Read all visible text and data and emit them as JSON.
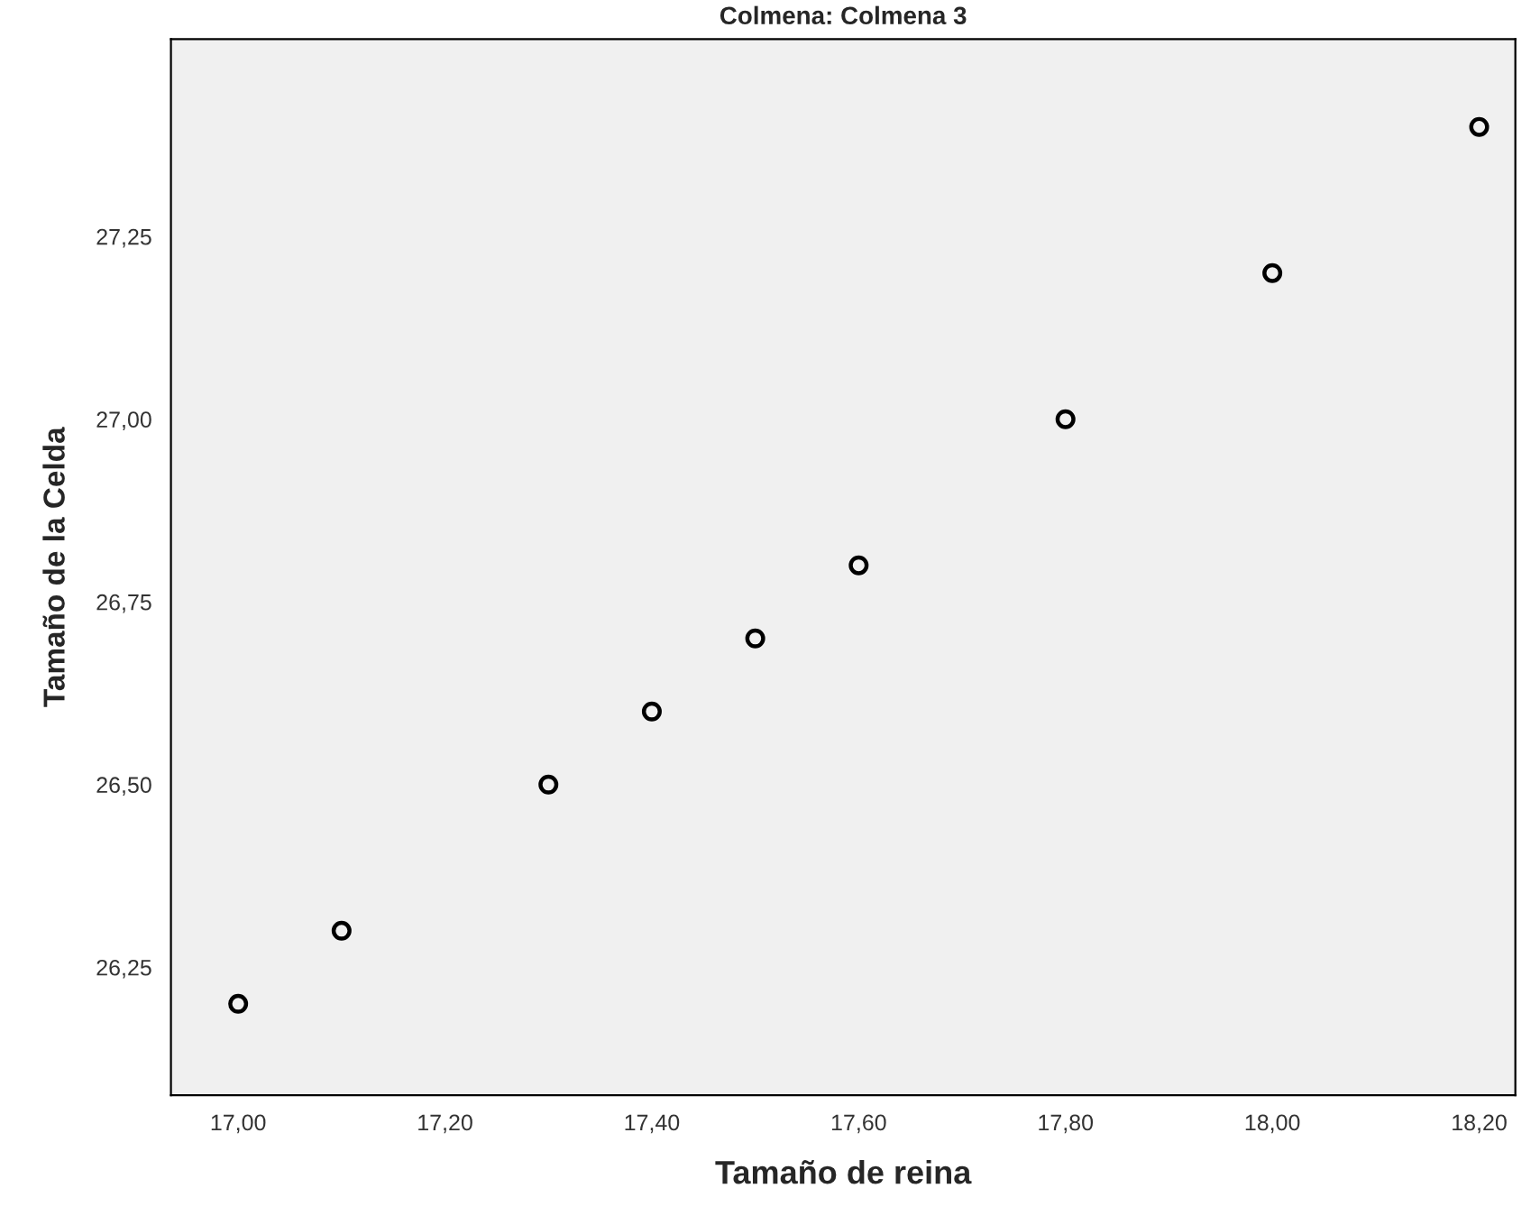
{
  "chart_data": {
    "type": "scatter",
    "title": "Colmena: Colmena 3",
    "xlabel": "Tamaño de reina",
    "ylabel": "Tamaño de la Celda",
    "x": [
      17.0,
      17.1,
      17.3,
      17.4,
      17.5,
      17.6,
      17.8,
      18.0,
      18.2
    ],
    "series": [
      {
        "color": "#000000",
        "values": [
          26.2,
          26.3,
          26.5,
          26.6,
          26.7,
          26.8,
          27.0,
          27.2,
          27.4
        ]
      }
    ],
    "xlim": [
      16.935,
      18.235
    ],
    "ylim": [
      26.075,
      27.52
    ],
    "xticks": [
      {
        "value": 17.0,
        "label": "17,00"
      },
      {
        "value": 17.2,
        "label": "17,20"
      },
      {
        "value": 17.4,
        "label": "17,40"
      },
      {
        "value": 17.6,
        "label": "17,60"
      },
      {
        "value": 17.8,
        "label": "17,80"
      },
      {
        "value": 18.0,
        "label": "18,00"
      },
      {
        "value": 18.2,
        "label": "18,20"
      }
    ],
    "yticks": [
      {
        "value": 26.25,
        "label": "26,25"
      },
      {
        "value": 26.5,
        "label": "26,50"
      },
      {
        "value": 26.75,
        "label": "26,75"
      },
      {
        "value": 27.0,
        "label": "27,00"
      },
      {
        "value": 27.25,
        "label": "27,25"
      }
    ],
    "marker": "circle",
    "grid": false
  }
}
